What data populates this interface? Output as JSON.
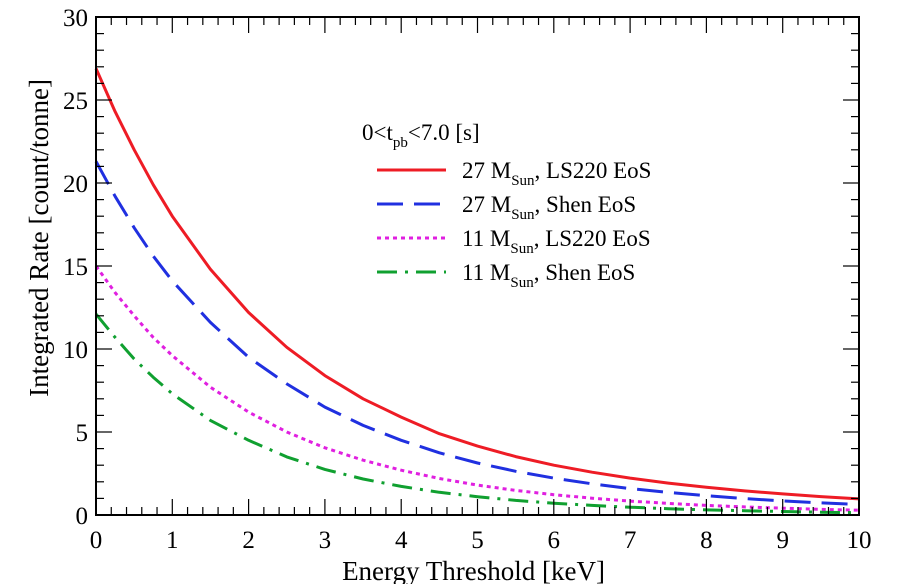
{
  "chart_data": {
    "type": "line",
    "xlabel": "Energy Threshold [keV]",
    "ylabel": "Integrated Rate [count/tonne]",
    "xlim": [
      0,
      10
    ],
    "ylim": [
      0,
      30
    ],
    "x_ticks": [
      "0",
      "1",
      "2",
      "3",
      "4",
      "5",
      "6",
      "7",
      "8",
      "9",
      "10"
    ],
    "y_ticks": [
      "0",
      "5",
      "10",
      "15",
      "20",
      "25",
      "30"
    ],
    "grid": false,
    "legend": {
      "placement": "upper-middle",
      "header": {
        "main": "0<t",
        "sub": "pb",
        "rest": "<7.0 [s]"
      }
    },
    "x": [
      0,
      0.25,
      0.5,
      0.75,
      1,
      1.5,
      2,
      2.5,
      3,
      3.5,
      4,
      4.5,
      5,
      5.5,
      6,
      6.5,
      7,
      7.5,
      8,
      8.5,
      9,
      9.5,
      10
    ],
    "series": [
      {
        "name": "27 M_Sun, LS220 EoS",
        "label": {
          "pre": "27 M",
          "sub": "Sun",
          "post": ", LS220 EoS"
        },
        "color": "#ee1c25",
        "style": "solid",
        "values": [
          26.9,
          24.3,
          22.0,
          19.9,
          18.0,
          14.8,
          12.2,
          10.1,
          8.4,
          7.0,
          5.9,
          4.9,
          4.15,
          3.52,
          3.0,
          2.58,
          2.22,
          1.92,
          1.67,
          1.45,
          1.27,
          1.11,
          0.97
        ]
      },
      {
        "name": "27 M_Sun, Shen EoS",
        "label": {
          "pre": "27 M",
          "sub": "Sun",
          "post": ", Shen EoS"
        },
        "color": "#2030e0",
        "style": "dashed",
        "values": [
          21.3,
          19.2,
          17.3,
          15.6,
          14.1,
          11.6,
          9.5,
          7.9,
          6.5,
          5.4,
          4.5,
          3.75,
          3.13,
          2.63,
          2.22,
          1.88,
          1.59,
          1.36,
          1.16,
          0.99,
          0.85,
          0.73,
          0.63
        ]
      },
      {
        "name": "11 M_Sun, LS220 EoS",
        "label": {
          "pre": "11 M",
          "sub": "Sun",
          "post": ", LS220 EoS"
        },
        "color": "#e020e0",
        "style": "dotted",
        "values": [
          15.0,
          13.4,
          12.0,
          10.7,
          9.6,
          7.7,
          6.2,
          5.0,
          4.05,
          3.3,
          2.7,
          2.2,
          1.8,
          1.48,
          1.22,
          1.01,
          0.84,
          0.7,
          0.58,
          0.49,
          0.41,
          0.34,
          0.29
        ]
      },
      {
        "name": "11 M_Sun, Shen EoS",
        "label": {
          "pre": "11 M",
          "sub": "Sun",
          "post": ", Shen EoS"
        },
        "color": "#10a030",
        "style": "dashdot",
        "values": [
          12.1,
          10.7,
          9.4,
          8.3,
          7.3,
          5.7,
          4.5,
          3.5,
          2.75,
          2.17,
          1.72,
          1.37,
          1.1,
          0.88,
          0.71,
          0.58,
          0.47,
          0.38,
          0.31,
          0.26,
          0.21,
          0.17,
          0.14
        ]
      }
    ]
  }
}
